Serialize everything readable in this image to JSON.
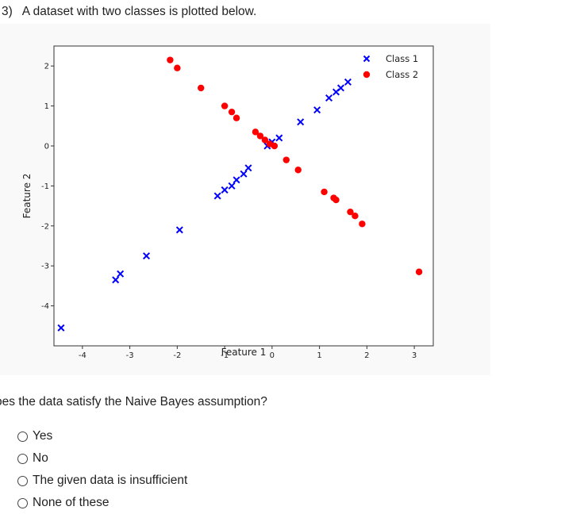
{
  "question": {
    "number": "3)",
    "prompt": "A dataset with two classes is plotted below.",
    "text": "oes the data satisfy the Naive Bayes assumption?"
  },
  "options": [
    {
      "label": "Yes"
    },
    {
      "label": "No"
    },
    {
      "label": "The given data is insufficient"
    },
    {
      "label": "None of these"
    }
  ],
  "chart_data": {
    "type": "scatter",
    "xlabel": "Feature 1",
    "ylabel": "Feature 2",
    "xlim": [
      -4.6,
      3.4
    ],
    "ylim": [
      -5.0,
      2.5
    ],
    "xticks": [
      -4,
      -3,
      -2,
      -1,
      0,
      1,
      2,
      3
    ],
    "yticks": [
      -4,
      -3,
      -2,
      -1,
      0,
      1,
      2
    ],
    "xtick_labels": [
      "-4",
      "-3",
      "-2",
      "-1",
      "0",
      "1",
      "2",
      "3"
    ],
    "ytick_labels": [
      "-4",
      "-3",
      "-2",
      "-1",
      "0",
      "1",
      "2"
    ],
    "legend_position": "top-right",
    "grid": false,
    "series": [
      {
        "name": "Class 1",
        "marker": "x",
        "color": "#0000ff",
        "points": [
          [
            -4.45,
            -4.55
          ],
          [
            -3.3,
            -3.35
          ],
          [
            -3.2,
            -3.2
          ],
          [
            -2.65,
            -2.75
          ],
          [
            -1.95,
            -2.1
          ],
          [
            -1.15,
            -1.25
          ],
          [
            -1.0,
            -1.1
          ],
          [
            -0.85,
            -1.0
          ],
          [
            -0.75,
            -0.85
          ],
          [
            -0.6,
            -0.7
          ],
          [
            -0.5,
            -0.55
          ],
          [
            -0.1,
            0.0
          ],
          [
            0.0,
            0.1
          ],
          [
            0.15,
            0.2
          ],
          [
            0.6,
            0.6
          ],
          [
            0.95,
            0.9
          ],
          [
            1.2,
            1.2
          ],
          [
            1.35,
            1.35
          ],
          [
            1.45,
            1.45
          ],
          [
            1.6,
            1.6
          ]
        ]
      },
      {
        "name": "Class 2",
        "marker": "o",
        "color": "#ff0000",
        "points": [
          [
            -2.15,
            2.15
          ],
          [
            -2.0,
            1.95
          ],
          [
            -1.5,
            1.45
          ],
          [
            -1.0,
            1.0
          ],
          [
            -0.85,
            0.85
          ],
          [
            -0.75,
            0.7
          ],
          [
            -0.35,
            0.35
          ],
          [
            -0.25,
            0.25
          ],
          [
            -0.15,
            0.15
          ],
          [
            -0.05,
            0.05
          ],
          [
            0.05,
            0.0
          ],
          [
            0.3,
            -0.35
          ],
          [
            0.55,
            -0.6
          ],
          [
            1.1,
            -1.15
          ],
          [
            1.3,
            -1.3
          ],
          [
            1.35,
            -1.35
          ],
          [
            1.65,
            -1.65
          ],
          [
            1.75,
            -1.75
          ],
          [
            1.9,
            -1.95
          ],
          [
            3.1,
            -3.15
          ]
        ]
      }
    ]
  }
}
